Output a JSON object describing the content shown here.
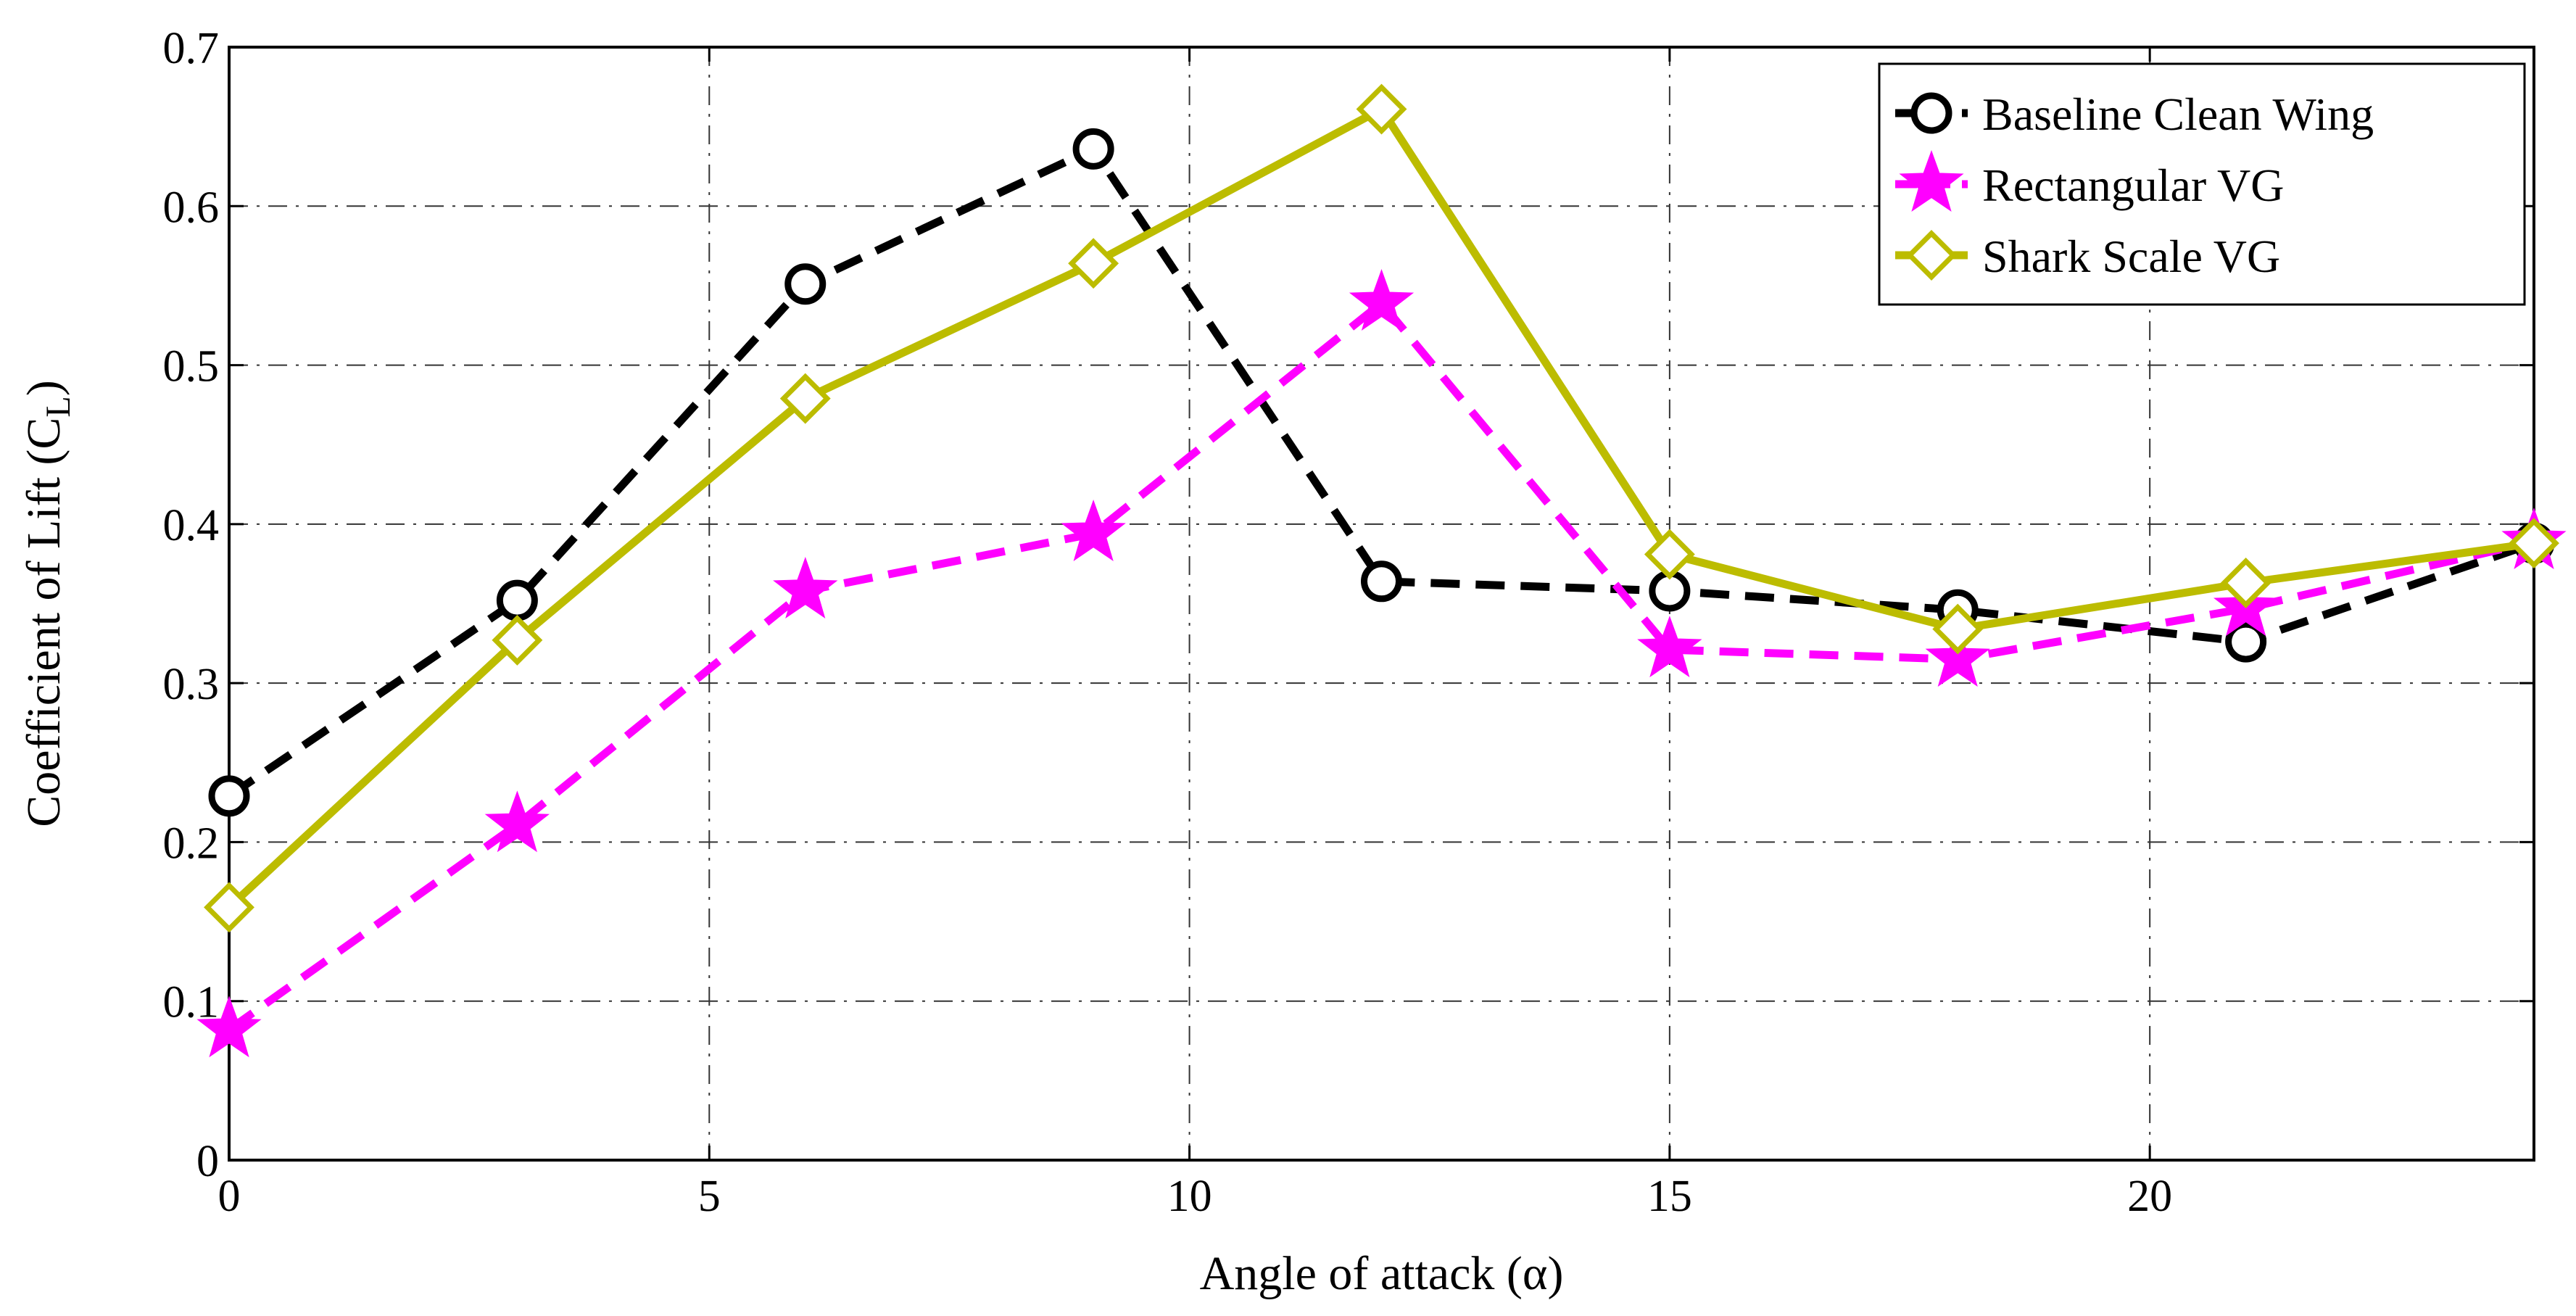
{
  "chart_data": {
    "type": "line",
    "title": "",
    "xlabel": "Angle of attack (α)",
    "ylabel_main": "Coefficient of Lift (C",
    "ylabel_sub": "L",
    "ylabel_close": ")",
    "xlim": [
      0,
      24
    ],
    "ylim": [
      0,
      0.7
    ],
    "xticks": [
      0,
      5,
      10,
      15,
      20
    ],
    "xtick_labels": [
      "0",
      "5",
      "10",
      "15",
      "20"
    ],
    "yticks": [
      0,
      0.1,
      0.2,
      0.3,
      0.4,
      0.5,
      0.6,
      0.7
    ],
    "ytick_labels": [
      "0",
      "0.1",
      "0.2",
      "0.3",
      "0.4",
      "0.5",
      "0.6",
      "0.7"
    ],
    "grid": true,
    "legend_position": "top-right",
    "x": [
      0,
      3,
      6,
      9,
      12,
      15,
      18,
      21,
      24
    ],
    "series": [
      {
        "name": "Baseline Clean Wing",
        "values": [
          0.229,
          0.352,
          0.551,
          0.636,
          0.364,
          0.358,
          0.346,
          0.326,
          0.388
        ],
        "color": "#000000",
        "dash": "dashed",
        "marker": "circle"
      },
      {
        "name": "Rectangular VG",
        "values": [
          0.082,
          0.211,
          0.358,
          0.394,
          0.539,
          0.321,
          0.315,
          0.347,
          0.389
        ],
        "color": "#ff00ff",
        "dash": "dashed",
        "marker": "star"
      },
      {
        "name": "Shark Scale VG",
        "values": [
          0.159,
          0.327,
          0.479,
          0.564,
          0.661,
          0.381,
          0.334,
          0.363,
          0.388
        ],
        "color": "#bcbc00",
        "dash": "solid",
        "marker": "diamond"
      }
    ]
  }
}
